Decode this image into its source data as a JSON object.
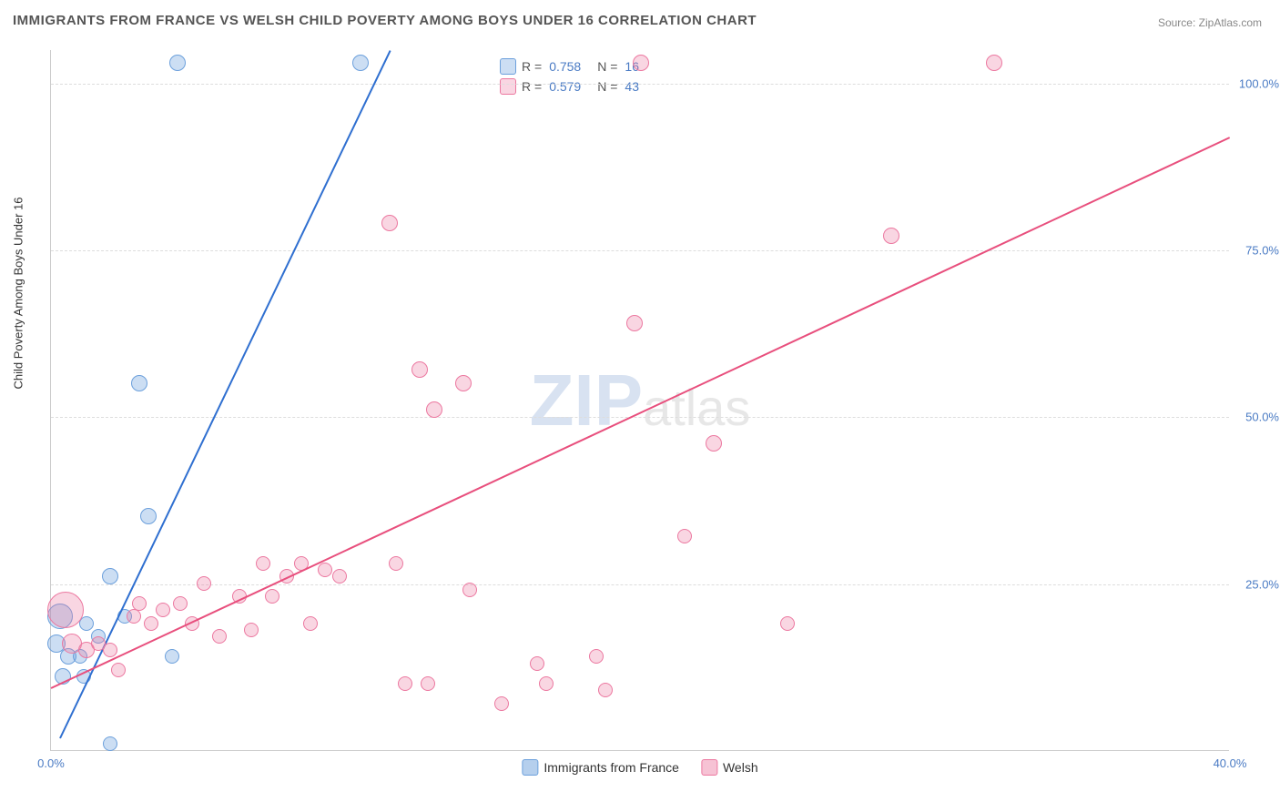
{
  "title": "IMMIGRANTS FROM FRANCE VS WELSH CHILD POVERTY AMONG BOYS UNDER 16 CORRELATION CHART",
  "source": "Source: ZipAtlas.com",
  "y_axis_label": "Child Poverty Among Boys Under 16",
  "watermark": {
    "part1": "ZIP",
    "part2": "atlas"
  },
  "chart": {
    "type": "scatter",
    "xlim": [
      0,
      40
    ],
    "ylim": [
      0,
      105
    ],
    "x_ticks": [
      0,
      40
    ],
    "x_tick_labels": [
      "0.0%",
      "40.0%"
    ],
    "y_ticks": [
      25,
      50,
      75,
      100
    ],
    "y_tick_labels": [
      "25.0%",
      "50.0%",
      "75.0%",
      "100.0%"
    ],
    "background_color": "#ffffff",
    "grid_color": "#dddddd",
    "axis_color": "#cccccc",
    "tick_label_color": "#4a7bc4"
  },
  "series": [
    {
      "name": "Immigrants from France",
      "color_fill": "rgba(108,160,220,0.35)",
      "color_stroke": "#6ca0dc",
      "trend_color": "#2f6fd0",
      "r": 0.758,
      "n": 16,
      "trend": {
        "x1": 0.3,
        "y1": 2,
        "x2": 11.5,
        "y2": 105
      },
      "points": [
        {
          "x": 4.3,
          "y": 103,
          "r": 9
        },
        {
          "x": 0.3,
          "y": 20,
          "r": 14
        },
        {
          "x": 0.2,
          "y": 16,
          "r": 10
        },
        {
          "x": 0.6,
          "y": 14,
          "r": 9
        },
        {
          "x": 0.4,
          "y": 11,
          "r": 9
        },
        {
          "x": 1.0,
          "y": 14,
          "r": 8
        },
        {
          "x": 1.2,
          "y": 19,
          "r": 8
        },
        {
          "x": 1.1,
          "y": 11,
          "r": 8
        },
        {
          "x": 1.6,
          "y": 17,
          "r": 8
        },
        {
          "x": 2.0,
          "y": 26,
          "r": 9
        },
        {
          "x": 2.5,
          "y": 20,
          "r": 8
        },
        {
          "x": 3.0,
          "y": 55,
          "r": 9
        },
        {
          "x": 3.3,
          "y": 35,
          "r": 9
        },
        {
          "x": 4.1,
          "y": 14,
          "r": 8
        },
        {
          "x": 2.0,
          "y": 1,
          "r": 8
        },
        {
          "x": 10.5,
          "y": 103,
          "r": 9
        }
      ]
    },
    {
      "name": "Welsh",
      "color_fill": "rgba(236,120,160,0.30)",
      "color_stroke": "#ec78a0",
      "trend_color": "#e84f7d",
      "r": 0.579,
      "n": 43,
      "trend": {
        "x1": 0,
        "y1": 9.5,
        "x2": 40,
        "y2": 92
      },
      "points": [
        {
          "x": 0.5,
          "y": 21,
          "r": 20
        },
        {
          "x": 0.7,
          "y": 16,
          "r": 11
        },
        {
          "x": 1.2,
          "y": 15,
          "r": 9
        },
        {
          "x": 1.6,
          "y": 16,
          "r": 8
        },
        {
          "x": 2.0,
          "y": 15,
          "r": 8
        },
        {
          "x": 2.3,
          "y": 12,
          "r": 8
        },
        {
          "x": 2.8,
          "y": 20,
          "r": 8
        },
        {
          "x": 3.0,
          "y": 22,
          "r": 8
        },
        {
          "x": 3.4,
          "y": 19,
          "r": 8
        },
        {
          "x": 3.8,
          "y": 21,
          "r": 8
        },
        {
          "x": 4.4,
          "y": 22,
          "r": 8
        },
        {
          "x": 4.8,
          "y": 19,
          "r": 8
        },
        {
          "x": 5.2,
          "y": 25,
          "r": 8
        },
        {
          "x": 5.7,
          "y": 17,
          "r": 8
        },
        {
          "x": 6.4,
          "y": 23,
          "r": 8
        },
        {
          "x": 6.8,
          "y": 18,
          "r": 8
        },
        {
          "x": 7.2,
          "y": 28,
          "r": 8
        },
        {
          "x": 7.5,
          "y": 23,
          "r": 8
        },
        {
          "x": 8.0,
          "y": 26,
          "r": 8
        },
        {
          "x": 8.5,
          "y": 28,
          "r": 8
        },
        {
          "x": 8.8,
          "y": 19,
          "r": 8
        },
        {
          "x": 9.3,
          "y": 27,
          "r": 8
        },
        {
          "x": 9.8,
          "y": 26,
          "r": 8
        },
        {
          "x": 11.5,
          "y": 79,
          "r": 9
        },
        {
          "x": 11.7,
          "y": 28,
          "r": 8
        },
        {
          "x": 12.0,
          "y": 10,
          "r": 8
        },
        {
          "x": 12.5,
          "y": 57,
          "r": 9
        },
        {
          "x": 12.8,
          "y": 10,
          "r": 8
        },
        {
          "x": 13.0,
          "y": 51,
          "r": 9
        },
        {
          "x": 14.0,
          "y": 55,
          "r": 9
        },
        {
          "x": 14.2,
          "y": 24,
          "r": 8
        },
        {
          "x": 15.3,
          "y": 7,
          "r": 8
        },
        {
          "x": 16.5,
          "y": 13,
          "r": 8
        },
        {
          "x": 16.8,
          "y": 10,
          "r": 8
        },
        {
          "x": 18.5,
          "y": 14,
          "r": 8
        },
        {
          "x": 18.8,
          "y": 9,
          "r": 8
        },
        {
          "x": 19.8,
          "y": 64,
          "r": 9
        },
        {
          "x": 20.0,
          "y": 103,
          "r": 9
        },
        {
          "x": 21.5,
          "y": 32,
          "r": 8
        },
        {
          "x": 22.5,
          "y": 46,
          "r": 9
        },
        {
          "x": 25.0,
          "y": 19,
          "r": 8
        },
        {
          "x": 28.5,
          "y": 77,
          "r": 9
        },
        {
          "x": 32.0,
          "y": 103,
          "r": 9
        }
      ]
    }
  ],
  "correlation_legend": {
    "r_label": "R =",
    "n_label": "N ="
  },
  "bottom_legend": [
    {
      "label": "Immigrants from France",
      "swatch_fill": "rgba(108,160,220,0.5)",
      "swatch_stroke": "#6ca0dc"
    },
    {
      "label": "Welsh",
      "swatch_fill": "rgba(236,120,160,0.45)",
      "swatch_stroke": "#ec78a0"
    }
  ]
}
